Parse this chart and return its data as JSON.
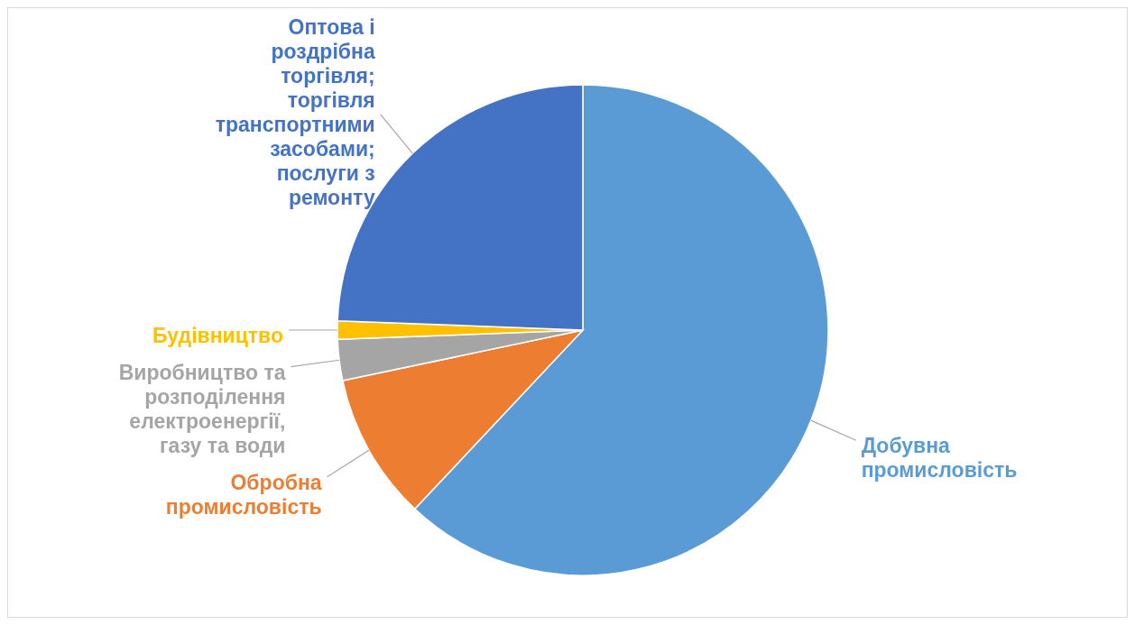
{
  "chart_data": {
    "type": "pie",
    "categories": [
      "Добувна промисловість",
      "Обробна промисловість",
      "Виробництво та розподілення електроенергії, газу та води",
      "Будівництво",
      "Оптова і роздрібна торгівля; торгівля транспортними засобами; послуги з ремонту"
    ],
    "values": [
      62,
      9.7,
      2.7,
      1.2,
      24.4
    ],
    "colors": [
      "#5b9bd5",
      "#ed7d31",
      "#a5a5a5",
      "#ffc000",
      "#4472c4"
    ]
  }
}
